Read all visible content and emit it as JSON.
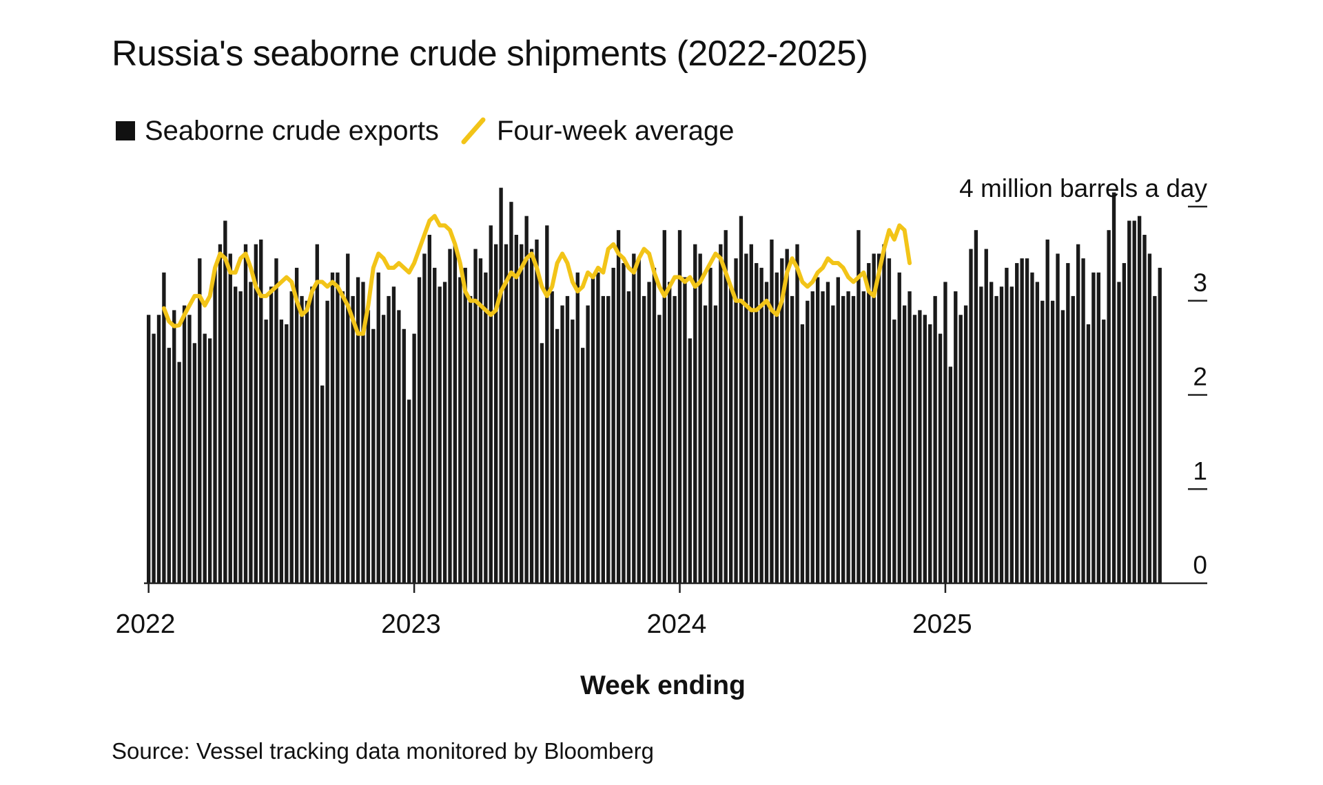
{
  "title": "Russia's seaborne crude shipments (2022-2025)",
  "legend": {
    "bars_label": "Seaborne crude exports",
    "line_label": "Four-week average"
  },
  "source": "Source: Vessel tracking data monitored by Bloomberg",
  "colors": {
    "bars": "#1a1a1a",
    "line": "#f2c418",
    "axis": "#222222",
    "background": "#ffffff"
  },
  "chart_data": {
    "type": "bar",
    "title": "Russia's seaborne crude shipments (2022-2025)",
    "xlabel": "Week ending",
    "ylabel": "4 million barrels a day",
    "ylim": [
      0,
      4
    ],
    "y_ticks": [
      0,
      1,
      2,
      3,
      4
    ],
    "y_tick_labels": [
      "0",
      "1",
      "2",
      "3",
      "4 million barrels a day"
    ],
    "x_tick_labels": [
      "2022",
      "2023",
      "2024",
      "2025"
    ],
    "x_tick_weeks": [
      0,
      52,
      104,
      156
    ],
    "legend_position": "top-left",
    "series": [
      {
        "name": "Seaborne crude exports",
        "type": "bar",
        "values": [
          2.85,
          2.65,
          2.85,
          3.3,
          2.5,
          2.9,
          2.35,
          2.95,
          2.85,
          2.55,
          3.45,
          2.65,
          2.6,
          3.35,
          3.6,
          3.85,
          3.5,
          3.15,
          3.1,
          3.6,
          3.2,
          3.6,
          3.65,
          2.8,
          3.15,
          3.45,
          2.8,
          2.75,
          3.1,
          3.35,
          3.05,
          3.0,
          3.15,
          3.6,
          2.1,
          3.0,
          3.3,
          3.3,
          3.1,
          3.5,
          3.05,
          3.25,
          3.2,
          2.9,
          2.7,
          3.3,
          2.85,
          3.05,
          3.15,
          2.9,
          2.7,
          1.95,
          2.65,
          3.25,
          3.5,
          3.7,
          3.35,
          3.15,
          3.2,
          3.55,
          3.6,
          3.25,
          3.35,
          3.05,
          3.55,
          3.45,
          3.3,
          3.8,
          3.6,
          4.2,
          3.6,
          4.05,
          3.7,
          3.6,
          3.9,
          3.55,
          3.65,
          2.55,
          3.8,
          3.1,
          2.7,
          2.95,
          3.05,
          2.8,
          3.3,
          2.5,
          2.95,
          3.25,
          3.3,
          3.05,
          3.05,
          3.35,
          3.75,
          3.4,
          3.1,
          3.5,
          3.45,
          3.05,
          3.2,
          3.35,
          2.85,
          3.75,
          3.2,
          3.05,
          3.75,
          3.25,
          2.6,
          3.6,
          3.5,
          2.95,
          3.35,
          2.95,
          3.6,
          3.75,
          3.15,
          3.45,
          3.9,
          3.5,
          3.6,
          3.4,
          3.35,
          3.2,
          3.65,
          3.3,
          3.45,
          3.55,
          3.05,
          3.6,
          2.75,
          3.0,
          3.1,
          3.25,
          3.1,
          3.2,
          2.95,
          3.25,
          3.05,
          3.1,
          3.05,
          3.75,
          3.1,
          3.4,
          3.5,
          3.5,
          3.6,
          3.45,
          2.8,
          3.3,
          2.95,
          3.1,
          2.85,
          2.9,
          2.85,
          2.75,
          3.05,
          2.65,
          3.2,
          2.3,
          3.1,
          2.85,
          2.95,
          3.55,
          3.75,
          3.15,
          3.55,
          3.2,
          3.05,
          3.15,
          3.35,
          3.15,
          3.4,
          3.45,
          3.45,
          3.3,
          3.2,
          3.0,
          3.65,
          3.0,
          3.5,
          2.9,
          3.4,
          3.05,
          3.6,
          3.45,
          2.75,
          3.3,
          3.3,
          2.8,
          3.75,
          4.15,
          3.2,
          3.4,
          3.85,
          3.85,
          3.9,
          3.7,
          3.5,
          3.05,
          3.35
        ]
      },
      {
        "name": "Four-week average",
        "type": "line",
        "start_week": 3,
        "values": [
          2.92,
          2.78,
          2.73,
          2.74,
          2.85,
          2.95,
          3.05,
          3.05,
          2.95,
          3.05,
          3.35,
          3.5,
          3.45,
          3.3,
          3.3,
          3.45,
          3.5,
          3.35,
          3.15,
          3.05,
          3.05,
          3.1,
          3.15,
          3.2,
          3.25,
          3.2,
          3.0,
          2.85,
          2.9,
          3.1,
          3.2,
          3.2,
          3.15,
          3.2,
          3.15,
          3.05,
          2.95,
          2.8,
          2.65,
          2.65,
          2.95,
          3.35,
          3.5,
          3.45,
          3.35,
          3.35,
          3.4,
          3.35,
          3.3,
          3.4,
          3.55,
          3.7,
          3.85,
          3.9,
          3.8,
          3.8,
          3.75,
          3.6,
          3.4,
          3.1,
          3.0,
          3.0,
          2.95,
          2.9,
          2.85,
          2.9,
          3.1,
          3.2,
          3.3,
          3.25,
          3.35,
          3.45,
          3.5,
          3.35,
          3.15,
          3.05,
          3.15,
          3.4,
          3.5,
          3.4,
          3.2,
          3.1,
          3.15,
          3.3,
          3.25,
          3.35,
          3.3,
          3.55,
          3.6,
          3.5,
          3.45,
          3.35,
          3.3,
          3.45,
          3.55,
          3.5,
          3.3,
          3.15,
          3.05,
          3.15,
          3.25,
          3.25,
          3.2,
          3.25,
          3.15,
          3.2,
          3.3,
          3.4,
          3.5,
          3.45,
          3.3,
          3.15,
          3.0,
          3.0,
          2.95,
          2.9,
          2.9,
          2.95,
          3.0,
          2.9,
          2.85,
          3.0,
          3.3,
          3.45,
          3.35,
          3.2,
          3.15,
          3.2,
          3.3,
          3.35,
          3.45,
          3.4,
          3.4,
          3.35,
          3.25,
          3.2,
          3.25,
          3.3,
          3.1,
          3.05,
          3.3,
          3.55,
          3.75,
          3.65,
          3.8,
          3.75,
          3.4
        ]
      }
    ]
  }
}
